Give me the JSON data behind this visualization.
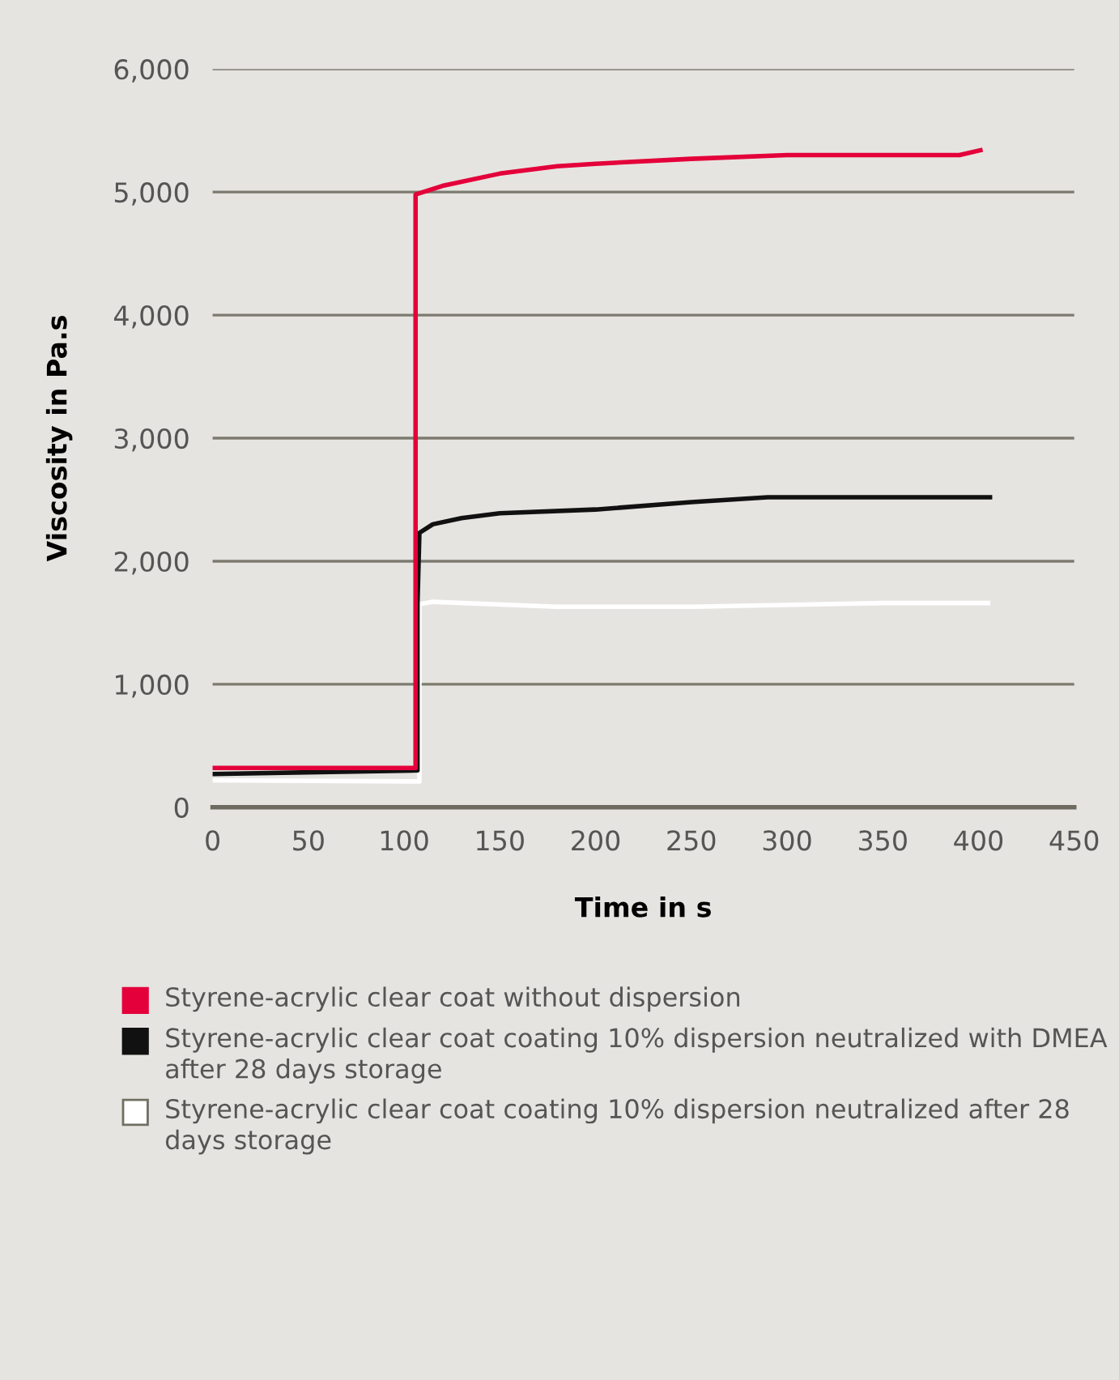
{
  "chart_data": {
    "type": "line",
    "xlabel": "Time in s",
    "ylabel": "Viscosity in Pa.s",
    "xlim": [
      0,
      450
    ],
    "xticks": [
      0,
      50,
      100,
      150,
      200,
      250,
      300,
      350,
      400,
      450
    ],
    "ylim": [
      0,
      6000
    ],
    "yticks": [
      {
        "value": 0,
        "label": "0"
      },
      {
        "value": 1000,
        "label": "1,000"
      },
      {
        "value": 2000,
        "label": "2,000"
      },
      {
        "value": 3000,
        "label": "3,000"
      },
      {
        "value": 4000,
        "label": "4,000"
      },
      {
        "value": 5000,
        "label": "5,000"
      },
      {
        "value": 6000,
        "label": "6,000"
      }
    ],
    "grid": "y",
    "legend": "bottom",
    "marker": "none",
    "line_style": "solid",
    "series": [
      {
        "name": "Styrene-acrylic clear coat without dispersion",
        "color": "#e4003a",
        "x": [
          0,
          106,
          106,
          120,
          150,
          180,
          200,
          250,
          300,
          390,
          401
        ],
        "values": [
          320,
          320,
          4980,
          5050,
          5150,
          5210,
          5230,
          5270,
          5300,
          5300,
          5340
        ]
      },
      {
        "name": "Styrene-acrylic clear coat coating 10% dispersion neutralized with DMEA after 28 days storage",
        "color": "#111111",
        "x": [
          0,
          107,
          107,
          108,
          115,
          130,
          150,
          200,
          250,
          290,
          406
        ],
        "values": [
          270,
          300,
          1650,
          2230,
          2300,
          2350,
          2390,
          2420,
          2480,
          2520,
          2520
        ]
      },
      {
        "name": "Styrene-acrylic clear coat coating 10% dispersion neutralized after 28 days storage",
        "color": "#ffffff",
        "x": [
          0,
          108,
          108,
          115,
          180,
          250,
          350,
          405
        ],
        "values": [
          220,
          210,
          1650,
          1670,
          1630,
          1630,
          1660,
          1660
        ]
      }
    ]
  }
}
